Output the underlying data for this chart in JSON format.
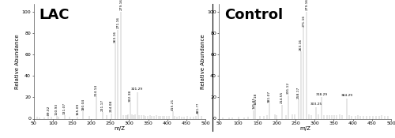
{
  "lac_peaks": [
    [
      59.06,
      1.5
    ],
    [
      65.0,
      1.0
    ],
    [
      77.0,
      1.0
    ],
    [
      89.02,
      2.5
    ],
    [
      96.0,
      1.5
    ],
    [
      110.93,
      2.5
    ],
    [
      116.0,
      1.5
    ],
    [
      131.07,
      3.0
    ],
    [
      145.0,
      1.5
    ],
    [
      165.09,
      2.0
    ],
    [
      180.04,
      7
    ],
    [
      195.0,
      2.5
    ],
    [
      214.14,
      20
    ],
    [
      231.17,
      6
    ],
    [
      241.0,
      3
    ],
    [
      254.08,
      5
    ],
    [
      263.16,
      70
    ],
    [
      271.16,
      83
    ],
    [
      279.16,
      100
    ],
    [
      284.0,
      3
    ],
    [
      290.0,
      3
    ],
    [
      295.0,
      3
    ],
    [
      298.0,
      4
    ],
    [
      302.38,
      15
    ],
    [
      308.0,
      4
    ],
    [
      312.0,
      3
    ],
    [
      316.0,
      4
    ],
    [
      321.29,
      25
    ],
    [
      327.0,
      3
    ],
    [
      332.0,
      3
    ],
    [
      338.0,
      3
    ],
    [
      342.0,
      2.5
    ],
    [
      348.0,
      2.5
    ],
    [
      355.0,
      3
    ],
    [
      360.0,
      2.5
    ],
    [
      366.0,
      2.5
    ],
    [
      372.0,
      3
    ],
    [
      378.0,
      2.5
    ],
    [
      383.0,
      2.5
    ],
    [
      388.0,
      2.5
    ],
    [
      393.0,
      2.5
    ],
    [
      399.0,
      2.5
    ],
    [
      404.0,
      2.5
    ],
    [
      415.21,
      7
    ],
    [
      420.0,
      2.5
    ],
    [
      426.0,
      2
    ],
    [
      432.0,
      2.5
    ],
    [
      438.0,
      2
    ],
    [
      445.0,
      2
    ],
    [
      452.0,
      2.5
    ],
    [
      460.0,
      2
    ],
    [
      468.0,
      2
    ],
    [
      475.0,
      2.5
    ],
    [
      481.0,
      4
    ],
    [
      490.0,
      2.5
    ]
  ],
  "lac_labels": [
    [
      89.02,
      2.5,
      "89.02",
      90,
      -1
    ],
    [
      110.93,
      2.5,
      "110.93",
      90,
      -1
    ],
    [
      131.07,
      3.0,
      "131.07",
      90,
      -1
    ],
    [
      165.09,
      2.0,
      "165.09",
      90,
      -1
    ],
    [
      180.04,
      7,
      "180.04",
      90,
      1
    ],
    [
      214.14,
      20,
      "214.14",
      90,
      1
    ],
    [
      231.17,
      6,
      "231.17",
      90,
      1
    ],
    [
      254.08,
      5,
      "254.08",
      90,
      1
    ],
    [
      279.16,
      100,
      "279.16",
      90,
      1
    ],
    [
      271.16,
      83,
      "271.16",
      90,
      1
    ],
    [
      263.16,
      70,
      "263.16",
      90,
      1
    ],
    [
      302.38,
      15,
      "302.38",
      90,
      1
    ],
    [
      321.29,
      25,
      "321.29",
      0,
      1
    ],
    [
      415.21,
      7,
      "415.21",
      90,
      1
    ],
    [
      481.0,
      4,
      "481.??",
      90,
      1
    ]
  ],
  "ctrl_peaks": [
    [
      60.0,
      1.0
    ],
    [
      75.0,
      1.0
    ],
    [
      85.0,
      1.0
    ],
    [
      100.0,
      1.5
    ],
    [
      115.0,
      1.0
    ],
    [
      125.0,
      1.5
    ],
    [
      141.01,
      8
    ],
    [
      145.18,
      12
    ],
    [
      156.0,
      2.5
    ],
    [
      167.0,
      2.5
    ],
    [
      175.0,
      3
    ],
    [
      181.07,
      14
    ],
    [
      195.0,
      4
    ],
    [
      201.0,
      3
    ],
    [
      214.55,
      13
    ],
    [
      224.0,
      3
    ],
    [
      231.12,
      22
    ],
    [
      241.0,
      4
    ],
    [
      248.0,
      4
    ],
    [
      258.17,
      18
    ],
    [
      263.16,
      63
    ],
    [
      271.16,
      85
    ],
    [
      279.16,
      100
    ],
    [
      285.0,
      4
    ],
    [
      291.0,
      3
    ],
    [
      303.25,
      11
    ],
    [
      310.0,
      4
    ],
    [
      318.29,
      20
    ],
    [
      325.0,
      3
    ],
    [
      333.0,
      3
    ],
    [
      338.0,
      3
    ],
    [
      345.0,
      3
    ],
    [
      352.0,
      3
    ],
    [
      358.0,
      3
    ],
    [
      365.0,
      4
    ],
    [
      372.0,
      3
    ],
    [
      384.29,
      19
    ],
    [
      390.0,
      3
    ],
    [
      396.0,
      2.5
    ],
    [
      406.0,
      2.5
    ],
    [
      413.0,
      3
    ],
    [
      420.0,
      2.5
    ],
    [
      428.0,
      2.5
    ],
    [
      436.0,
      2.5
    ],
    [
      444.0,
      2.5
    ],
    [
      452.0,
      2.5
    ],
    [
      460.0,
      2.5
    ],
    [
      468.0,
      2.5
    ],
    [
      475.0,
      3
    ],
    [
      483.0,
      2.5
    ],
    [
      491.0,
      2.5
    ]
  ],
  "ctrl_labels": [
    [
      141.01,
      8,
      "141.01",
      90,
      -1
    ],
    [
      145.18,
      12,
      "145.18",
      90,
      1
    ],
    [
      181.07,
      14,
      "181.07",
      90,
      1
    ],
    [
      214.55,
      13,
      "214.55",
      90,
      1
    ],
    [
      231.12,
      22,
      "231.12",
      90,
      1
    ],
    [
      258.17,
      18,
      "258.17",
      90,
      1
    ],
    [
      279.16,
      100,
      "279.16",
      90,
      1
    ],
    [
      271.16,
      85,
      "271.16",
      90,
      1
    ],
    [
      263.16,
      63,
      "263.16",
      90,
      1
    ],
    [
      303.25,
      11,
      "303.25",
      0,
      1
    ],
    [
      318.29,
      20,
      "318.29",
      0,
      1
    ],
    [
      384.29,
      19,
      "384.29",
      0,
      1
    ]
  ],
  "xlim": [
    50,
    500
  ],
  "ylim": [
    0,
    107
  ],
  "yticks": [
    0,
    20,
    40,
    60,
    80,
    100
  ],
  "xlabel": "m/Z",
  "ylabel": "Relative Abundance",
  "lac_title": "LAC",
  "ctrl_title": "Control",
  "bar_color": "#999999",
  "label_fontsize": 3.2,
  "title_fontsize": 13,
  "axis_fontsize": 5,
  "tick_fontsize": 4.5
}
